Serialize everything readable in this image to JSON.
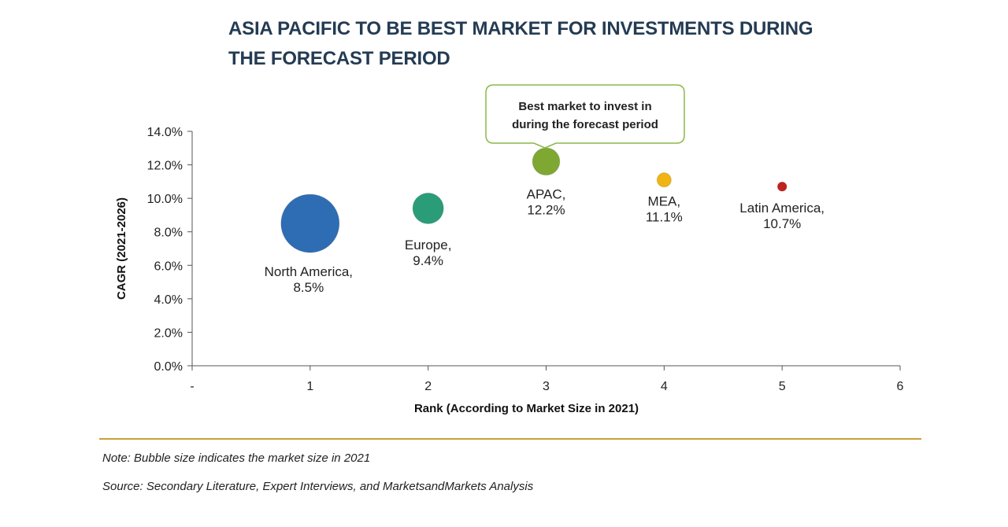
{
  "title": {
    "line1": "ASIA PACIFIC TO BE BEST MARKET FOR INVESTMENTS DURING",
    "line2": "THE FORECAST PERIOD"
  },
  "chart_data": {
    "type": "scatter",
    "xlabel": "Rank (According to Market Size in 2021)",
    "ylabel": "CAGR (2021-2026)",
    "xlim": [
      0,
      6
    ],
    "ylim": [
      0,
      14
    ],
    "x_ticks": [
      "-",
      "1",
      "2",
      "3",
      "4",
      "5",
      "6"
    ],
    "y_ticks": [
      "0.0%",
      "2.0%",
      "4.0%",
      "6.0%",
      "8.0%",
      "10.0%",
      "12.0%",
      "14.0%"
    ],
    "grid": false,
    "points": [
      {
        "x": 1,
        "y": 8.5,
        "size": 100,
        "color": "#2e6db4",
        "label_line1": "North America,",
        "label_line2": "8.5%"
      },
      {
        "x": 2,
        "y": 9.4,
        "size": 28,
        "color": "#2a9d78",
        "label_line1": "Europe,",
        "label_line2": "9.4%"
      },
      {
        "x": 3,
        "y": 12.2,
        "size": 22,
        "color": "#7ea832",
        "label_line1": "APAC,",
        "label_line2": "12.2%"
      },
      {
        "x": 4,
        "y": 11.1,
        "size": 6,
        "color": "#f0b414",
        "label_line1": "MEA,",
        "label_line2": "11.1%"
      },
      {
        "x": 5,
        "y": 10.7,
        "size": 2.5,
        "color": "#c0221d",
        "label_line1": "Latin America,",
        "label_line2": "10.7%"
      }
    ],
    "callout": {
      "line1": "Best market to invest in",
      "line2": "during the forecast period",
      "border_color": "#8cb84a"
    }
  },
  "footer": {
    "note": "Note: Bubble size indicates the market size in 2021",
    "source": "Source: Secondary Literature, Expert Interviews, and MarketsandMarkets Analysis",
    "divider_color": "#c9a13b"
  }
}
